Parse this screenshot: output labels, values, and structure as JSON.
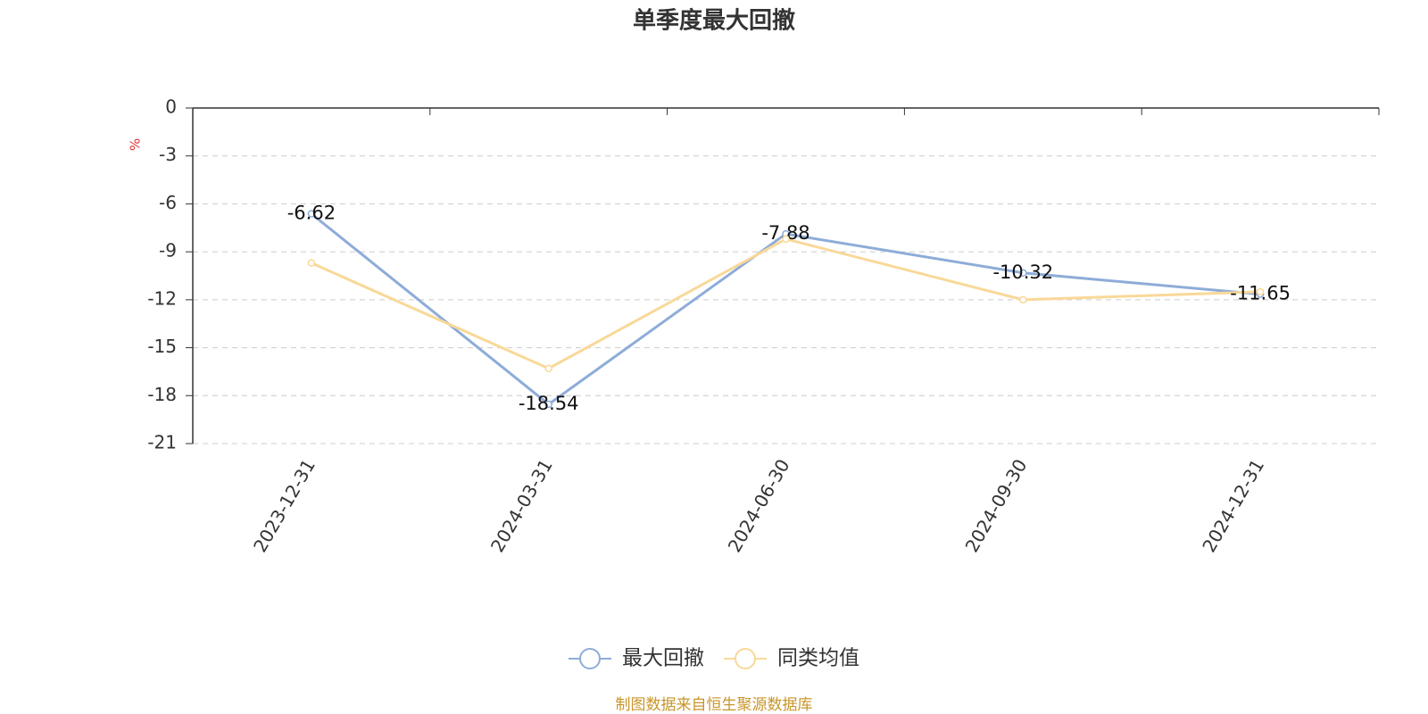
{
  "chart_data": {
    "type": "line",
    "title": "单季度最大回撤",
    "y_unit": "%",
    "categories": [
      "2023-12-31",
      "2024-03-31",
      "2024-06-30",
      "2024-09-30",
      "2024-12-31"
    ],
    "series": [
      {
        "name": "最大回撤",
        "color": "#8eacd8",
        "values": [
          -6.62,
          -18.54,
          -7.88,
          -10.32,
          -11.65
        ],
        "labels": true
      },
      {
        "name": "同类均值",
        "color": "#f9d898",
        "values": [
          -9.7,
          -16.3,
          -8.2,
          -12.0,
          -11.5
        ],
        "labels": false
      }
    ],
    "ylim": [
      -21,
      0
    ],
    "yticks": [
      0,
      -3,
      -6,
      -9,
      -12,
      -15,
      -18,
      -21
    ],
    "grid": true,
    "source": "制图数据来自恒生聚源数据库"
  }
}
